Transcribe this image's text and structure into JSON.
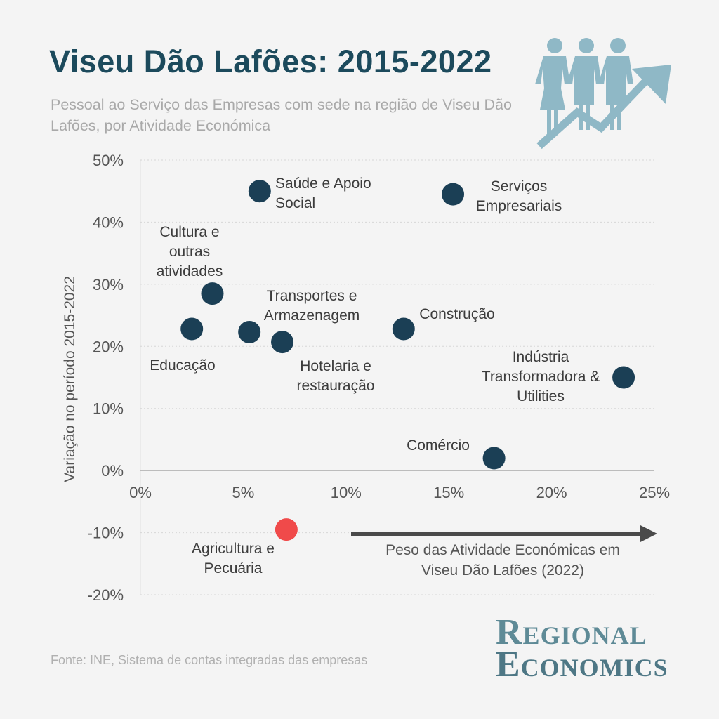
{
  "header": {
    "title": "Viseu Dão Lafões: 2015-2022",
    "subtitle": "Pessoal ao Serviço das Empresas com sede na região de Viseu Dão Lafões, por Atividade Económica",
    "icon": "people-growth-arrow-icon"
  },
  "colors": {
    "title": "#1c4a5c",
    "point": "#1b3f55",
    "highlight": "#f04a4a",
    "icon": "#8fb8c6"
  },
  "chart_data": {
    "type": "scatter",
    "title": "",
    "xlabel": "",
    "ylabel": "Variação no período 2015-2022",
    "xlim": [
      0,
      25
    ],
    "ylim": [
      -20,
      50
    ],
    "x_ticks": [
      "0%",
      "5%",
      "10%",
      "15%",
      "20%",
      "25%"
    ],
    "y_ticks": [
      "50%",
      "40%",
      "30%",
      "20%",
      "10%",
      "0%",
      "-10%",
      "-20%"
    ],
    "grid": "horizontal dotted",
    "annotation": "Peso das Atividade Económicas em Viseu Dão Lafões (2022)",
    "points": [
      {
        "label": "Saúde e Apoio Social",
        "x": 5.8,
        "y": 45.0
      },
      {
        "label": "Serviços Empresariais",
        "x": 15.2,
        "y": 44.5
      },
      {
        "label": "Cultura e outras atividades",
        "x": 3.5,
        "y": 28.5
      },
      {
        "label": "Educação",
        "x": 2.5,
        "y": 22.8
      },
      {
        "label": "Transportes e Armazenagem",
        "x": 5.3,
        "y": 22.3
      },
      {
        "label": "Hotelaria e restauração",
        "x": 6.9,
        "y": 20.7
      },
      {
        "label": "Construção",
        "x": 12.8,
        "y": 22.8
      },
      {
        "label": "Indústria Transformadora & Utilities",
        "x": 23.5,
        "y": 15.0
      },
      {
        "label": "Comércio",
        "x": 17.2,
        "y": 2.0
      },
      {
        "label": "Agricultura e Pecuária",
        "x": 7.1,
        "y": -9.5,
        "highlight": true
      }
    ]
  },
  "footer": {
    "source": "Fonte: INE, Sistema de contas integradas das empresas",
    "brand_line1": "Regional",
    "brand_line2": "Economics"
  }
}
